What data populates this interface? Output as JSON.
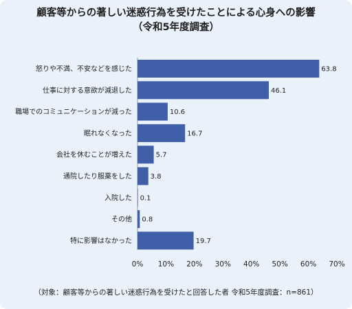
{
  "chart_data": {
    "type": "bar",
    "orientation": "horizontal",
    "title_line1": "顧客等からの著しい迷惑行為を受けたことによる心身への影響",
    "title_line2": "（令和5年度調査）",
    "categories": [
      "怒りや不満、不安などを感じた",
      "仕事に対する意欲が減退した",
      "職場でのコミュニケーションが減った",
      "眠れなくなった",
      "会社を休むことが増えた",
      "通院したり服薬をした",
      "入院した",
      "その他",
      "特に影響はなかった"
    ],
    "values": [
      63.8,
      46.1,
      10.6,
      16.7,
      5.7,
      3.8,
      0.1,
      0.8,
      19.7
    ],
    "value_labels": [
      "63.8",
      "46.1",
      "10.6",
      "16.7",
      "5.7",
      "3.8",
      "0.1",
      "0.8",
      "19.7"
    ],
    "xlim": [
      0,
      70
    ],
    "x_ticks": [
      "0%",
      "10%",
      "20%",
      "30%",
      "40%",
      "50%",
      "60%",
      "70%"
    ],
    "grid": false,
    "bar_color": "#3f5fa8",
    "note": "（対象：顧客等からの著しい迷惑行為を受けたと回答した者 令和5年度調査：n=861）"
  },
  "colors": {
    "background": "#e9f1fb",
    "axis": "#9a9a9a"
  }
}
